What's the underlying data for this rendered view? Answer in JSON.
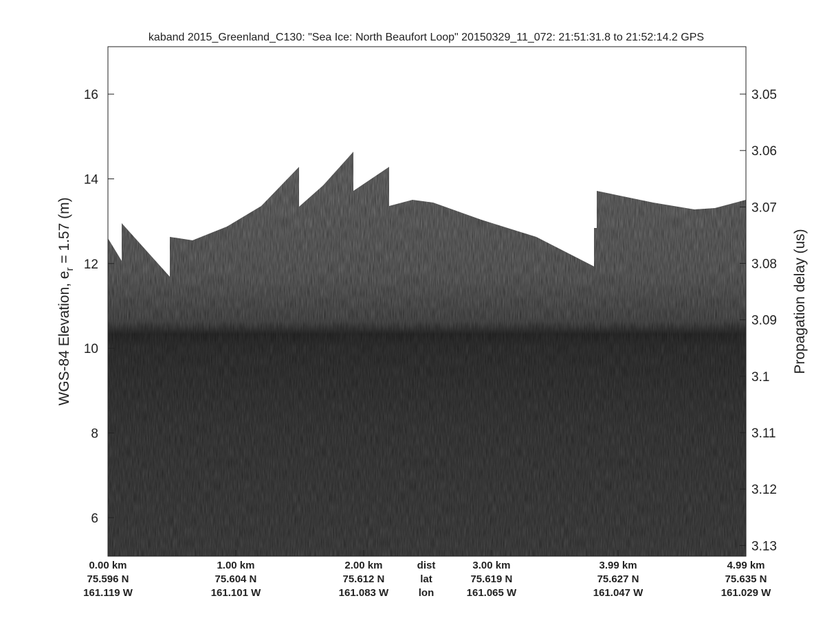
{
  "chart_data": {
    "type": "echogram",
    "title": "kaband 2015_Greenland_C130: \"Sea Ice: North Beaufort Loop\"  20150329_11_072: 21:51:31.8 to 21:52:14.2 GPS",
    "ylabel": "WGS-84 Elevation, e",
    "ylabel_sub": "r",
    "ylabel_rest": " = 1.57 (m)",
    "y2label": "Propagation delay (us)",
    "ylim": [
      5.09,
      17.12
    ],
    "yticks": [
      6,
      8,
      10,
      12,
      14,
      16
    ],
    "y2lim": [
      3.1319,
      3.0416
    ],
    "y2ticks": [
      3.05,
      3.06,
      3.07,
      3.08,
      3.09,
      3.1,
      3.11,
      3.12,
      3.13
    ],
    "xlim": [
      0,
      4.99
    ],
    "xticks": [
      {
        "value": 0,
        "label": "0.00 km"
      },
      {
        "value": 1,
        "label": "1.00 km"
      },
      {
        "value": 2,
        "label": "2.00 km"
      },
      {
        "value": 3,
        "label": "3.00 km"
      },
      {
        "value": 3.99,
        "label": "3.99 km"
      },
      {
        "value": 4.99,
        "label": "4.99 km"
      }
    ],
    "xtick_lat": [
      "75.596 N",
      "75.604 N",
      "75.612 N",
      "75.619 N",
      "75.627 N",
      "75.635 N"
    ],
    "xtick_lon": [
      "161.119 W",
      "161.101 W",
      "161.083 W",
      "161.065 W",
      "161.047 W",
      "161.029 W"
    ],
    "xtick_row_labels": [
      "dist",
      "lat",
      "lon"
    ]
  }
}
